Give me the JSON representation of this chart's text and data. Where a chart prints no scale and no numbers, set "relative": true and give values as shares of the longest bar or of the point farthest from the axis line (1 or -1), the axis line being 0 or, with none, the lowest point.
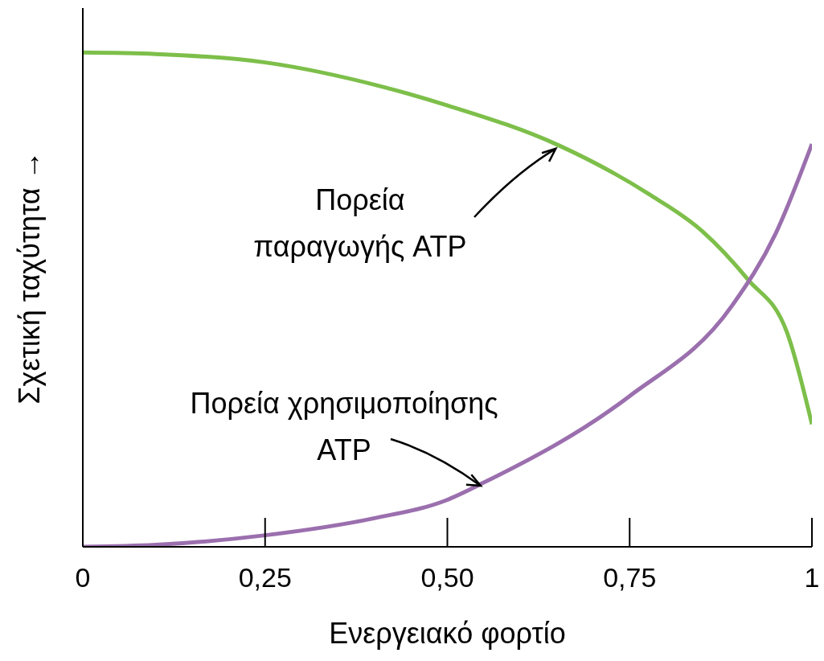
{
  "chart_data": {
    "type": "line",
    "xlabel": "Ενεργειακό φορτίο",
    "ylabel": "Σχετική ταχύτητα →",
    "relative": true,
    "xlim": [
      0,
      1
    ],
    "xticks": [
      0,
      {
        "value": 0.25,
        "label": "0,25"
      },
      {
        "value": 0.5,
        "label": "0,50"
      },
      {
        "value": 0.75,
        "label": "0,75"
      },
      1
    ],
    "tick_labels": "x",
    "grid": false,
    "marker": "none",
    "line_style": "solid",
    "series": [
      {
        "color": "#7dbf4a",
        "x": [
          0,
          0.1,
          0.25,
          0.413,
          0.5,
          0.653,
          0.776,
          0.85,
          0.912,
          0.966,
          1
        ],
        "values": [
          1,
          0.997,
          0.98,
          0.93,
          0.893,
          0.812,
          0.714,
          0.638,
          0.541,
          0.433,
          0.248
        ]
      },
      {
        "color": "#9b6fae",
        "x": [
          0,
          0.1,
          0.248,
          0.4,
          0.498,
          0.55,
          0.749,
          0.89,
          0.95,
          1
        ],
        "values": [
          0,
          0.004,
          0.023,
          0.058,
          0.094,
          0.13,
          0.304,
          0.487,
          0.633,
          0.815
        ]
      }
    ],
    "annotations": [
      {
        "text": "Πορεία παραγωγής ATP",
        "x": 0.653,
        "y": 0.812
      },
      {
        "text": "Πορεία χρησιμοποίησης ATP",
        "x": 0.55,
        "y": 0.13
      }
    ]
  }
}
